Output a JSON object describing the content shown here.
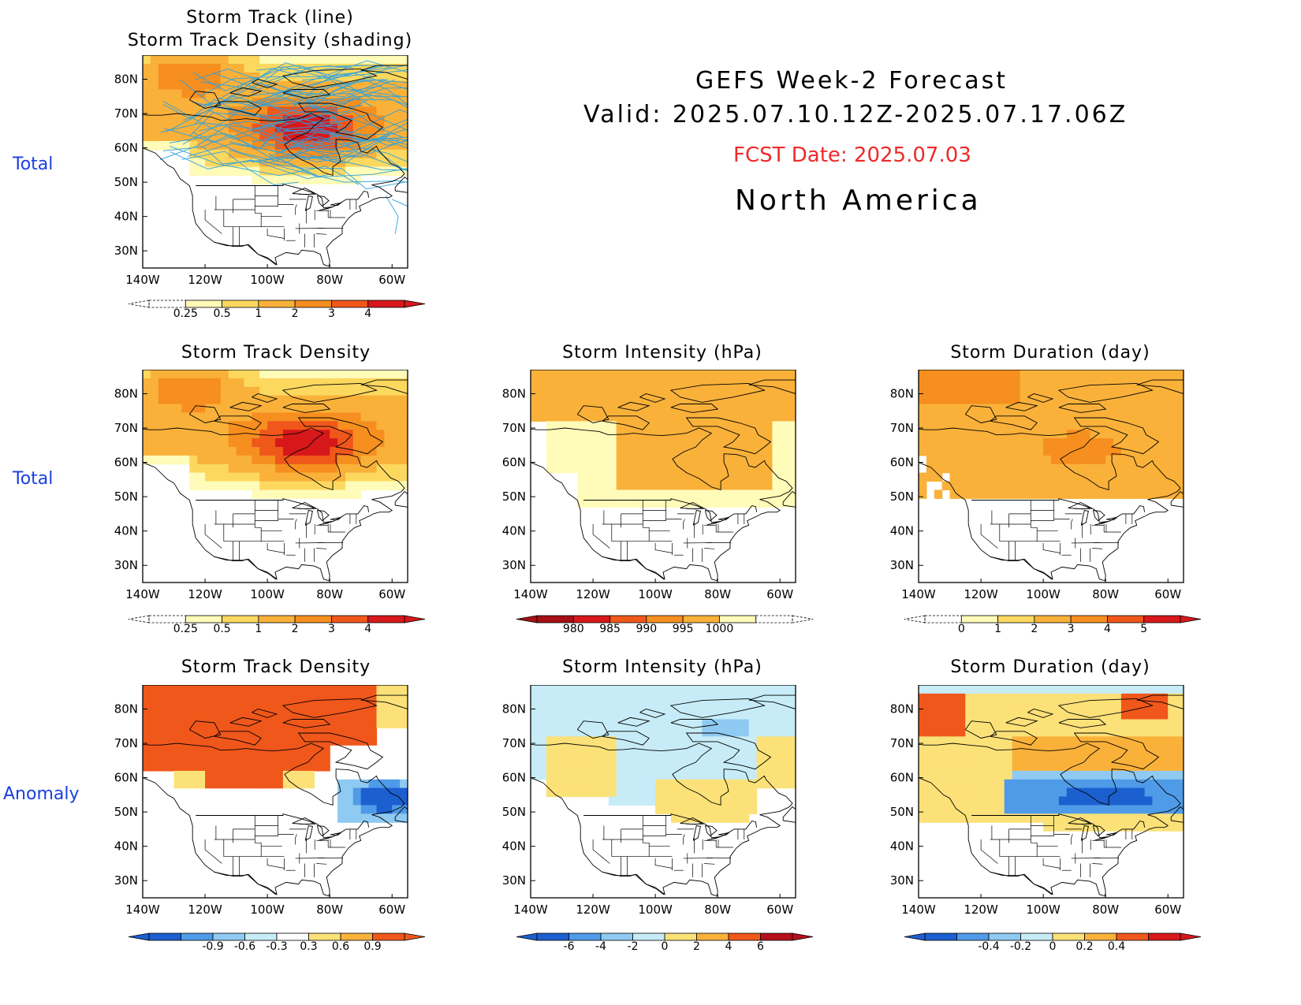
{
  "header": {
    "line1": "GEFS Week-2 Forecast",
    "line2": "Valid: 2025.07.10.12Z-2025.07.17.06Z",
    "fcst_date": "FCST Date: 2025.07.03",
    "region": "North America"
  },
  "row_labels": {
    "row1": "Total",
    "row2": "Total",
    "row3": "Anomaly"
  },
  "colors": {
    "row_label": "#1a3fe0",
    "fcst": "#ee2a2a",
    "track_line": "#2aa0e0"
  },
  "axes": {
    "lon_ticks": [
      "140W",
      "120W",
      "100W",
      "80W",
      "60W"
    ],
    "lat_ticks": [
      "80N",
      "70N",
      "60N",
      "50N",
      "40N",
      "30N"
    ]
  },
  "panels": [
    {
      "id": "p1",
      "title_line1": "Storm Track (line)",
      "title_line2": "Storm Track Density (shading)",
      "field": "density_total",
      "tracks": true,
      "colorbar": {
        "labels": [
          "0.25",
          "0.5",
          "1",
          "2",
          "3",
          "4"
        ],
        "colors": [
          "#fffbb8",
          "#fcd85f",
          "#f9b13a",
          "#f68f1f",
          "#f0571b",
          "#d7181b"
        ],
        "low_dashed": true
      }
    },
    {
      "id": "p2",
      "title_line1": "Storm Track Density",
      "field": "density_total",
      "tracks": false,
      "colorbar": {
        "labels": [
          "0.25",
          "0.5",
          "1",
          "2",
          "3",
          "4"
        ],
        "colors": [
          "#fffbb8",
          "#fcd85f",
          "#f9b13a",
          "#f68f1f",
          "#f0571b",
          "#d7181b"
        ],
        "low_dashed": true
      }
    },
    {
      "id": "p3",
      "title_line1": "Storm Intensity (hPa)",
      "field": "intensity_total",
      "tracks": false,
      "colorbar": {
        "labels": [
          "980",
          "985",
          "990",
          "995",
          "1000"
        ],
        "colors": [
          "#a50f15",
          "#d7181b",
          "#f0571b",
          "#f68f1f",
          "#f9b13a",
          "#fffbb8"
        ],
        "high_dashed": true
      }
    },
    {
      "id": "p4",
      "title_line1": "Storm Duration (day)",
      "field": "duration_total",
      "tracks": false,
      "colorbar": {
        "labels": [
          "0",
          "1",
          "2",
          "3",
          "4",
          "5"
        ],
        "colors": [
          "#fffbb8",
          "#fcd85f",
          "#f9b13a",
          "#f68f1f",
          "#f0571b",
          "#d7181b"
        ],
        "low_dashed": true
      }
    },
    {
      "id": "p5",
      "title_line1": "Storm Track Density",
      "field": "density_anom",
      "tracks": false,
      "colorbar": {
        "labels": [
          "-0.9",
          "-0.6",
          "-0.3",
          "0.3",
          "0.6",
          "0.9"
        ],
        "colors": [
          "#1c5fcf",
          "#4f9be8",
          "#8ecaf2",
          "#c7ecf7",
          "#ffffff",
          "#fbe178",
          "#f9b13a",
          "#f0571b"
        ]
      }
    },
    {
      "id": "p6",
      "title_line1": "Storm Intensity (hPa)",
      "field": "intensity_anom",
      "tracks": false,
      "colorbar": {
        "labels": [
          "-6",
          "-4",
          "-2",
          "0",
          "2",
          "4",
          "6"
        ],
        "colors": [
          "#1c5fcf",
          "#4f9be8",
          "#8ecaf2",
          "#c7ecf7",
          "#fbe178",
          "#f9b13a",
          "#f0571b",
          "#b5101b"
        ]
      }
    },
    {
      "id": "p7",
      "title_line1": "Storm Duration (day)",
      "field": "duration_anom",
      "tracks": false,
      "colorbar": {
        "labels": [
          "-0.4",
          "-0.2",
          "0",
          "0.2",
          "0.4"
        ],
        "colors": [
          "#1c5fcf",
          "#4f9be8",
          "#8ecaf2",
          "#c7ecf7",
          "#fbe178",
          "#f9b13a",
          "#f0571b",
          "#d7181b"
        ]
      }
    }
  ]
}
